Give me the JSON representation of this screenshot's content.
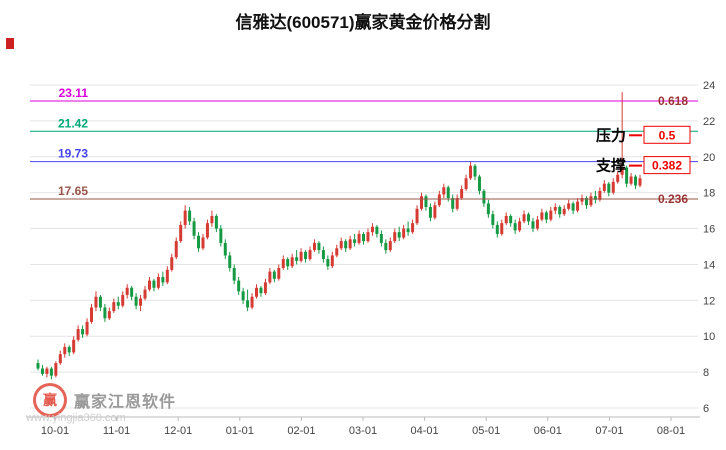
{
  "page": {
    "title": "信雅达(600571)赢家黄金价格分割"
  },
  "watermark": {
    "logo_text": "赢",
    "brand": "赢家江恩软件",
    "url": "www.yingjia360.com"
  },
  "annotations": {
    "pressure": "压力",
    "support": "支撑"
  },
  "chart_data": {
    "type": "candlestick",
    "title": "信雅达(600571)赢家黄金价格分割",
    "ylim": [
      6,
      24
    ],
    "y_ticks": [
      24,
      22,
      20,
      18,
      16,
      14,
      12,
      10,
      8,
      6
    ],
    "x_ticks": [
      "10-01",
      "11-01",
      "12-01",
      "01-01",
      "02-01",
      "03-01",
      "04-01",
      "05-01",
      "06-01",
      "07-01",
      "08-01"
    ],
    "grid": true,
    "legend": "none",
    "y_axis_side": "right",
    "levels": [
      {
        "price": 23.11,
        "ratio": "0.618",
        "color": "#dd00dd",
        "ratio_style": "plain",
        "side_label": ""
      },
      {
        "price": 21.42,
        "ratio": "0.5",
        "color": "#00a878",
        "ratio_style": "boxed",
        "side_label": "压力"
      },
      {
        "price": 19.73,
        "ratio": "0.382",
        "color": "#4444ee",
        "ratio_style": "boxed",
        "side_label": "支撑"
      },
      {
        "price": 17.65,
        "ratio": "0.236",
        "color": "#99544a",
        "ratio_style": "plain",
        "side_label": ""
      }
    ],
    "colors": {
      "up": "#d53b33",
      "down": "#159a43",
      "grid": "#e4e4e4",
      "axis_line": "#bbbbbb",
      "axis_text": "#444444",
      "ratio_plain_text": "#993333",
      "ratio_box": "#ee0000",
      "side_label_text": "#000000"
    },
    "candles": [
      [
        8.5,
        8.7,
        8.1,
        8.2
      ],
      [
        8.2,
        8.4,
        7.8,
        7.9
      ],
      [
        7.9,
        8.3,
        7.7,
        8.2
      ],
      [
        8.2,
        8.3,
        7.6,
        7.8
      ],
      [
        7.8,
        8.6,
        7.7,
        8.5
      ],
      [
        8.5,
        9.2,
        8.4,
        9.0
      ],
      [
        9.0,
        9.6,
        8.8,
        9.4
      ],
      [
        9.4,
        9.5,
        8.9,
        9.1
      ],
      [
        9.1,
        10.0,
        9.0,
        9.8
      ],
      [
        9.8,
        10.6,
        9.7,
        10.4
      ],
      [
        10.4,
        10.6,
        9.9,
        10.1
      ],
      [
        10.1,
        11.0,
        10.0,
        10.8
      ],
      [
        10.8,
        11.8,
        10.7,
        11.6
      ],
      [
        11.6,
        12.5,
        11.4,
        12.2
      ],
      [
        12.2,
        12.3,
        11.4,
        11.6
      ],
      [
        11.6,
        11.8,
        10.8,
        11.0
      ],
      [
        11.0,
        11.6,
        10.9,
        11.4
      ],
      [
        11.4,
        12.1,
        11.3,
        11.9
      ],
      [
        11.9,
        12.2,
        11.5,
        11.7
      ],
      [
        11.7,
        12.5,
        11.6,
        12.3
      ],
      [
        12.3,
        12.9,
        12.1,
        12.7
      ],
      [
        12.7,
        12.8,
        12.0,
        12.2
      ],
      [
        12.2,
        12.4,
        11.5,
        11.7
      ],
      [
        11.7,
        12.3,
        11.4,
        12.1
      ],
      [
        12.1,
        12.8,
        12.0,
        12.6
      ],
      [
        12.6,
        13.3,
        12.5,
        13.1
      ],
      [
        13.1,
        13.2,
        12.5,
        12.7
      ],
      [
        12.7,
        13.5,
        12.6,
        13.3
      ],
      [
        13.3,
        13.6,
        12.8,
        13.0
      ],
      [
        13.0,
        13.9,
        12.9,
        13.7
      ],
      [
        13.7,
        14.6,
        13.6,
        14.4
      ],
      [
        14.4,
        15.5,
        14.3,
        15.3
      ],
      [
        15.3,
        16.4,
        15.2,
        16.2
      ],
      [
        16.2,
        17.3,
        16.0,
        17.0
      ],
      [
        17.0,
        17.2,
        16.2,
        16.4
      ],
      [
        16.4,
        16.6,
        15.4,
        15.6
      ],
      [
        15.6,
        15.8,
        14.7,
        14.9
      ],
      [
        14.9,
        15.7,
        14.8,
        15.5
      ],
      [
        15.5,
        16.5,
        15.4,
        16.3
      ],
      [
        16.3,
        17.0,
        16.1,
        16.7
      ],
      [
        16.7,
        16.8,
        15.8,
        16.0
      ],
      [
        16.0,
        16.2,
        15.0,
        15.2
      ],
      [
        15.2,
        15.4,
        14.3,
        14.5
      ],
      [
        14.5,
        14.7,
        13.6,
        13.8
      ],
      [
        13.8,
        14.0,
        12.9,
        13.1
      ],
      [
        13.1,
        13.3,
        12.3,
        12.5
      ],
      [
        12.5,
        12.7,
        11.8,
        12.0
      ],
      [
        12.0,
        12.6,
        11.4,
        11.6
      ],
      [
        11.6,
        12.4,
        11.5,
        12.2
      ],
      [
        12.2,
        12.9,
        12.1,
        12.7
      ],
      [
        12.7,
        12.8,
        12.2,
        12.4
      ],
      [
        12.4,
        13.2,
        12.3,
        13.0
      ],
      [
        13.0,
        13.8,
        12.9,
        13.6
      ],
      [
        13.6,
        13.7,
        13.0,
        13.2
      ],
      [
        13.2,
        14.0,
        13.1,
        13.8
      ],
      [
        13.8,
        14.5,
        13.7,
        14.3
      ],
      [
        14.3,
        14.4,
        13.7,
        13.9
      ],
      [
        13.9,
        14.6,
        13.8,
        14.4
      ],
      [
        14.4,
        14.8,
        14.0,
        14.2
      ],
      [
        14.2,
        14.9,
        14.1,
        14.7
      ],
      [
        14.7,
        14.8,
        14.1,
        14.3
      ],
      [
        14.3,
        15.0,
        14.2,
        14.8
      ],
      [
        14.8,
        15.4,
        14.7,
        15.2
      ],
      [
        15.2,
        15.3,
        14.6,
        14.8
      ],
      [
        14.8,
        15.0,
        14.1,
        14.3
      ],
      [
        14.3,
        14.5,
        13.7,
        13.9
      ],
      [
        13.9,
        14.7,
        13.8,
        14.5
      ],
      [
        14.5,
        15.1,
        14.4,
        14.9
      ],
      [
        14.9,
        15.5,
        14.8,
        15.3
      ],
      [
        15.3,
        15.4,
        14.7,
        14.9
      ],
      [
        14.9,
        15.6,
        14.8,
        15.4
      ],
      [
        15.4,
        15.7,
        15.0,
        15.2
      ],
      [
        15.2,
        15.9,
        15.1,
        15.7
      ],
      [
        15.7,
        15.8,
        15.1,
        15.3
      ],
      [
        15.3,
        16.0,
        15.2,
        15.8
      ],
      [
        15.8,
        16.3,
        15.6,
        16.1
      ],
      [
        16.1,
        16.2,
        15.5,
        15.7
      ],
      [
        15.7,
        15.9,
        15.0,
        15.2
      ],
      [
        15.2,
        15.4,
        14.6,
        14.8
      ],
      [
        14.8,
        15.5,
        14.7,
        15.3
      ],
      [
        15.3,
        16.0,
        15.2,
        15.8
      ],
      [
        15.8,
        16.1,
        15.3,
        15.5
      ],
      [
        15.5,
        16.2,
        15.4,
        16.0
      ],
      [
        16.0,
        16.4,
        15.6,
        15.8
      ],
      [
        15.8,
        16.5,
        15.7,
        16.3
      ],
      [
        16.3,
        17.3,
        16.2,
        17.1
      ],
      [
        17.1,
        18.0,
        17.0,
        17.8
      ],
      [
        17.8,
        17.9,
        17.0,
        17.2
      ],
      [
        17.2,
        17.4,
        16.4,
        16.6
      ],
      [
        16.6,
        17.5,
        16.5,
        17.3
      ],
      [
        17.3,
        18.1,
        17.2,
        17.9
      ],
      [
        17.9,
        18.5,
        17.7,
        18.3
      ],
      [
        18.3,
        18.4,
        17.5,
        17.7
      ],
      [
        17.7,
        17.9,
        16.9,
        17.1
      ],
      [
        17.1,
        17.9,
        17.0,
        17.7
      ],
      [
        17.7,
        18.4,
        17.6,
        18.2
      ],
      [
        18.2,
        19.0,
        18.1,
        18.8
      ],
      [
        18.8,
        19.7,
        18.7,
        19.5
      ],
      [
        19.5,
        19.6,
        18.7,
        18.9
      ],
      [
        18.9,
        19.0,
        17.9,
        18.1
      ],
      [
        18.1,
        18.2,
        17.2,
        17.4
      ],
      [
        17.4,
        17.6,
        16.6,
        16.8
      ],
      [
        16.8,
        17.0,
        16.0,
        16.2
      ],
      [
        16.2,
        16.4,
        15.5,
        15.7
      ],
      [
        15.7,
        16.5,
        15.6,
        16.3
      ],
      [
        16.3,
        16.9,
        16.2,
        16.7
      ],
      [
        16.7,
        16.8,
        16.1,
        16.3
      ],
      [
        16.3,
        16.5,
        15.7,
        15.9
      ],
      [
        15.9,
        16.6,
        15.8,
        16.4
      ],
      [
        16.4,
        17.0,
        16.3,
        16.8
      ],
      [
        16.8,
        16.9,
        16.2,
        16.4
      ],
      [
        16.4,
        16.6,
        15.8,
        16.0
      ],
      [
        16.0,
        16.7,
        15.9,
        16.5
      ],
      [
        16.5,
        17.1,
        16.4,
        16.9
      ],
      [
        16.9,
        17.0,
        16.3,
        16.5
      ],
      [
        16.5,
        17.2,
        16.4,
        17.0
      ],
      [
        17.0,
        17.4,
        16.8,
        17.2
      ],
      [
        17.2,
        17.3,
        16.6,
        16.8
      ],
      [
        16.8,
        17.3,
        16.7,
        17.1
      ],
      [
        17.1,
        17.6,
        17.0,
        17.4
      ],
      [
        17.4,
        17.5,
        16.8,
        17.0
      ],
      [
        17.0,
        17.7,
        16.9,
        17.5
      ],
      [
        17.5,
        17.9,
        17.3,
        17.7
      ],
      [
        17.7,
        17.8,
        17.1,
        17.3
      ],
      [
        17.3,
        18.0,
        17.2,
        17.8
      ],
      [
        17.8,
        18.1,
        17.4,
        17.6
      ],
      [
        17.6,
        18.3,
        17.5,
        18.1
      ],
      [
        18.1,
        18.7,
        18.0,
        18.5
      ],
      [
        18.5,
        18.6,
        17.8,
        18.0
      ],
      [
        18.0,
        18.8,
        17.9,
        18.6
      ],
      [
        18.6,
        19.2,
        18.5,
        19.0
      ],
      [
        19.0,
        23.6,
        18.8,
        19.4
      ],
      [
        19.4,
        19.5,
        18.3,
        18.5
      ],
      [
        18.5,
        19.1,
        18.4,
        18.9
      ],
      [
        18.9,
        19.0,
        18.2,
        18.4
      ],
      [
        18.4,
        19.0,
        18.3,
        18.8
      ]
    ]
  }
}
